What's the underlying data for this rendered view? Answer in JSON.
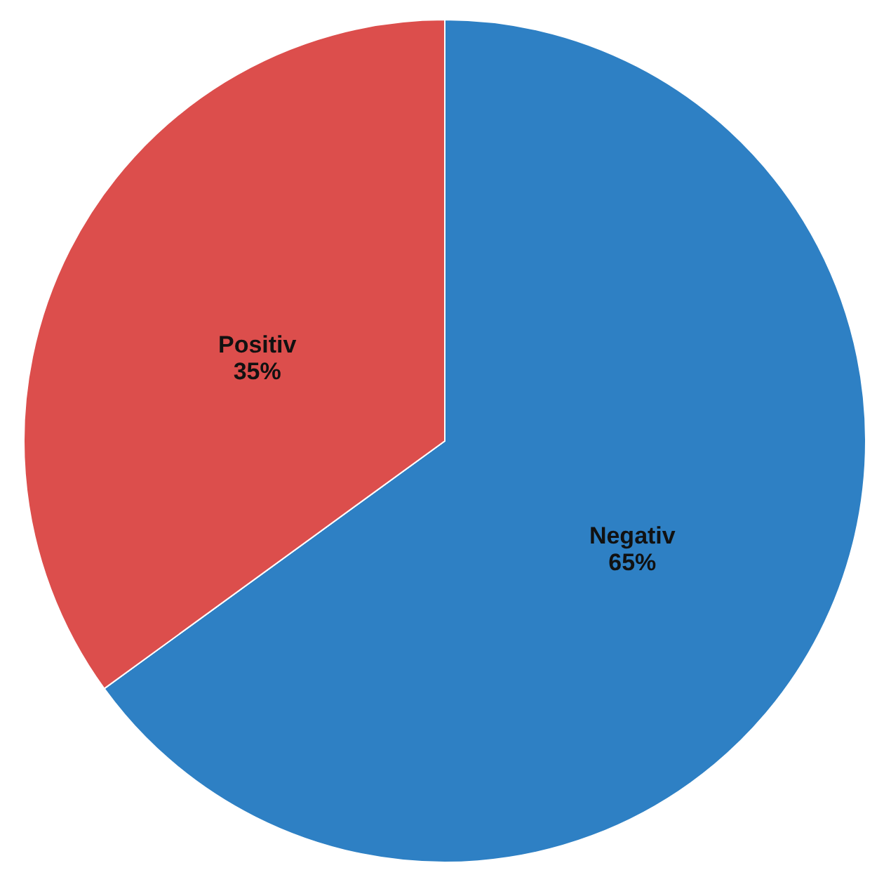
{
  "chart_data": {
    "type": "pie",
    "categories": [
      "Negativ",
      "Positiv"
    ],
    "values": [
      65,
      35
    ],
    "colors": [
      "#2e80c4",
      "#dc4e4c"
    ],
    "value_labels": [
      "65%",
      "35%"
    ],
    "legend": false
  }
}
